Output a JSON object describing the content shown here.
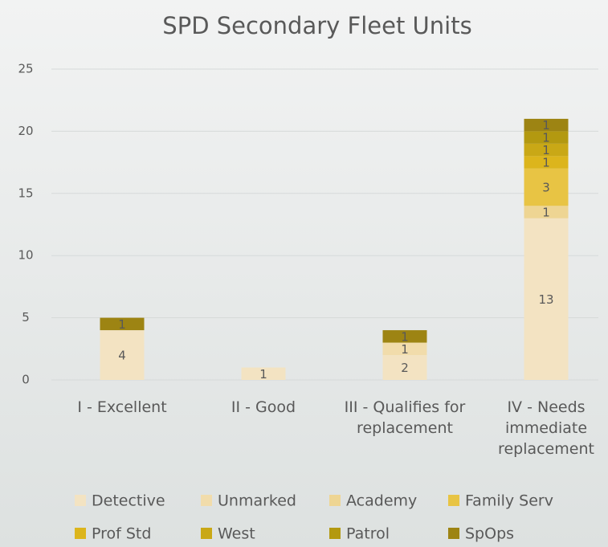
{
  "chart_data": {
    "type": "stacked_bar",
    "title": "SPD Secondary Fleet Units",
    "categories": [
      "I - Excellent",
      "II - Good",
      "III - Qualifies for replacement",
      "IV - Needs immediate replacement"
    ],
    "series": [
      {
        "name": "Detective",
        "color": "#f3e3c2",
        "values": [
          4,
          1,
          2,
          13
        ]
      },
      {
        "name": "Unmarked",
        "color": "#f1dcab",
        "values": [
          null,
          null,
          1,
          null
        ]
      },
      {
        "name": "Academy",
        "color": "#eed593",
        "values": [
          null,
          null,
          null,
          1
        ]
      },
      {
        "name": "Family Serv",
        "color": "#e8c444",
        "values": [
          null,
          null,
          null,
          3
        ]
      },
      {
        "name": "Prof Std",
        "color": "#dcb51c",
        "values": [
          null,
          null,
          null,
          1
        ]
      },
      {
        "name": "West",
        "color": "#c9a816",
        "values": [
          null,
          null,
          null,
          1
        ]
      },
      {
        "name": "Patrol",
        "color": "#b39910",
        "values": [
          null,
          null,
          null,
          1
        ]
      },
      {
        "name": "SpOps",
        "color": "#9d8413",
        "values": [
          1,
          null,
          1,
          1
        ]
      }
    ],
    "ylim": [
      0,
      25
    ],
    "yticks": [
      0,
      5,
      10,
      15,
      20,
      25
    ],
    "grid": true,
    "legend": "bottom"
  }
}
